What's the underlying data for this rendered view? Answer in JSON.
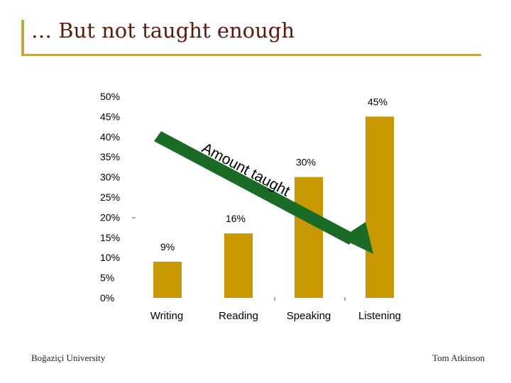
{
  "slide": {
    "title": "… But not taught enough",
    "footer_left": "Boğaziçi University",
    "footer_right": "Tom Atkinson"
  },
  "arrow": {
    "label": "Amount taught",
    "color": "#1a6b26"
  },
  "chart_data": {
    "type": "bar",
    "categories": [
      "Writing",
      "Reading",
      "Speaking",
      "Listening"
    ],
    "values": [
      9,
      16,
      30,
      45
    ],
    "data_labels": [
      "9%",
      "16%",
      "30%",
      "45%"
    ],
    "yticks": [
      "0%",
      "5%",
      "10%",
      "15%",
      "20%",
      "25%",
      "30%",
      "35%",
      "40%",
      "45%",
      "50%"
    ],
    "ylim": [
      0,
      50
    ],
    "bar_color": "#c89800",
    "grid": false
  }
}
